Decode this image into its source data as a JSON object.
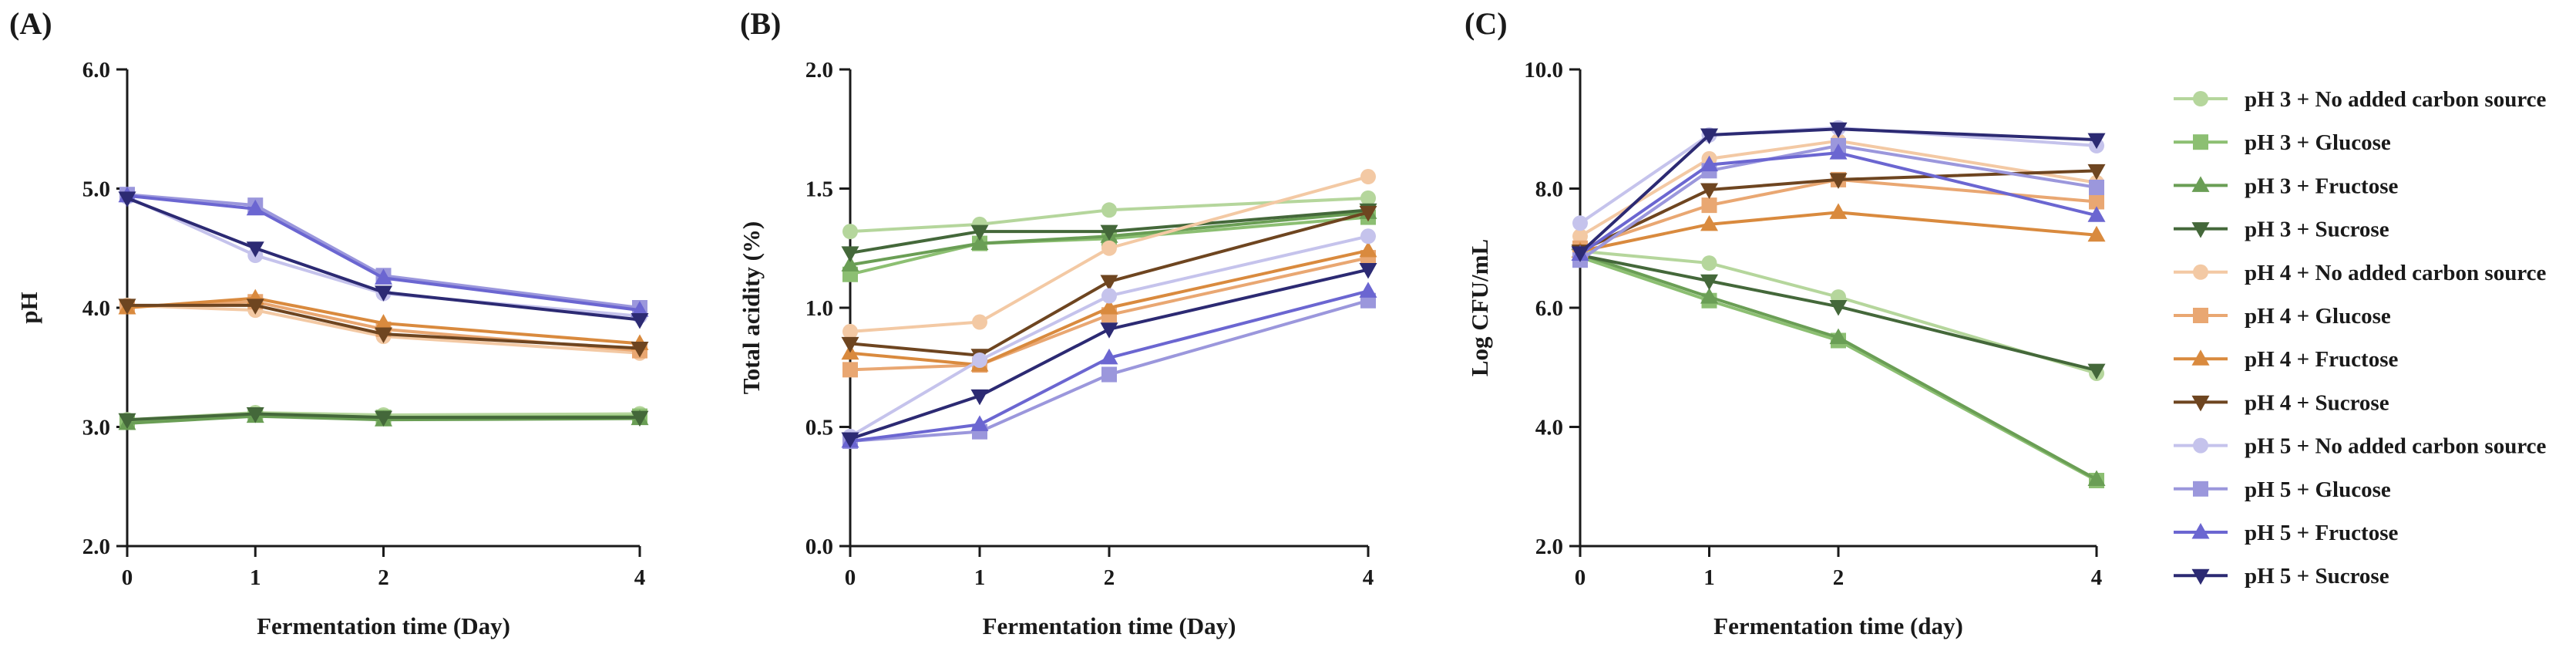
{
  "colors": {
    "axis": "#1a1a1a",
    "pH 3 + No added carbon source": "#b5d69c",
    "pH 3 + Glucose": "#8cbf72",
    "pH 3 + Fructose": "#6a9e55",
    "pH 3 + Sucrose": "#44683a",
    "pH 4 + No added carbon source": "#f3c9a4",
    "pH 4 + Glucose": "#e9a772",
    "pH 4 + Fructose": "#d98a3e",
    "pH 4 + Sucrose": "#6e4520",
    "pH 5 + No added carbon source": "#c5c3ec",
    "pH 5 + Glucose": "#9b97dc",
    "pH 5 + Fructose": "#6b66d1",
    "pH 5 + Sucrose": "#2c2a73"
  },
  "legend": {
    "position": "right",
    "entries": [
      {
        "name": "pH 3 + No added carbon source",
        "marker": "circle"
      },
      {
        "name": "pH 3 + Glucose",
        "marker": "square"
      },
      {
        "name": "pH 3 + Fructose",
        "marker": "triangle-up"
      },
      {
        "name": "pH 3 + Sucrose",
        "marker": "triangle-down"
      },
      {
        "name": "pH 4 + No added carbon source",
        "marker": "circle"
      },
      {
        "name": "pH 4 + Glucose",
        "marker": "square"
      },
      {
        "name": "pH 4 + Fructose",
        "marker": "triangle-up"
      },
      {
        "name": "pH 4 + Sucrose",
        "marker": "triangle-down"
      },
      {
        "name": "pH 5 + No added carbon source",
        "marker": "circle"
      },
      {
        "name": "pH 5 + Glucose",
        "marker": "square"
      },
      {
        "name": "pH 5 + Fructose",
        "marker": "triangle-up"
      },
      {
        "name": "pH 5 + Sucrose",
        "marker": "triangle-down"
      }
    ]
  },
  "chart_data": [
    {
      "panel": "(A)",
      "type": "line",
      "xlabel": "Fermentation time (Day)",
      "ylabel": "pH",
      "x": [
        0,
        1,
        2,
        4
      ],
      "xticks": [
        "0",
        "1",
        "2",
        "4"
      ],
      "ylim": [
        2.0,
        6.0
      ],
      "yticks": [
        "2.0",
        "3.0",
        "4.0",
        "5.0",
        "6.0"
      ],
      "series": [
        {
          "name": "pH 3 + No added carbon source",
          "values": [
            3.06,
            3.12,
            3.1,
            3.11
          ]
        },
        {
          "name": "pH 3 + Glucose",
          "values": [
            3.04,
            3.1,
            3.08,
            3.09
          ]
        },
        {
          "name": "pH 3 + Fructose",
          "values": [
            3.03,
            3.09,
            3.06,
            3.07
          ]
        },
        {
          "name": "pH 3 + Sucrose",
          "values": [
            3.06,
            3.11,
            3.08,
            3.08
          ]
        },
        {
          "name": "pH 4 + No added carbon source",
          "values": [
            4.02,
            3.98,
            3.76,
            3.62
          ]
        },
        {
          "name": "pH 4 + Glucose",
          "values": [
            4.01,
            4.05,
            3.82,
            3.64
          ]
        },
        {
          "name": "pH 4 + Fructose",
          "values": [
            4.0,
            4.08,
            3.87,
            3.7
          ]
        },
        {
          "name": "pH 4 + Sucrose",
          "values": [
            4.02,
            4.02,
            3.78,
            3.66
          ]
        },
        {
          "name": "pH 5 + No added carbon source",
          "values": [
            4.93,
            4.44,
            4.12,
            3.93
          ]
        },
        {
          "name": "pH 5 + Glucose",
          "values": [
            4.95,
            4.86,
            4.27,
            4.0
          ]
        },
        {
          "name": "pH 5 + Fructose",
          "values": [
            4.94,
            4.83,
            4.25,
            3.98
          ]
        },
        {
          "name": "pH 5 + Sucrose",
          "values": [
            4.92,
            4.5,
            4.13,
            3.9
          ]
        }
      ]
    },
    {
      "panel": "(B)",
      "type": "line",
      "xlabel": "Fermentation time (Day)",
      "ylabel": "Total acidity (%)",
      "x": [
        0,
        1,
        2,
        4
      ],
      "xticks": [
        "0",
        "1",
        "2",
        "4"
      ],
      "ylim": [
        0.0,
        2.0
      ],
      "yticks": [
        "0.0",
        "0.5",
        "1.0",
        "1.5",
        "2.0"
      ],
      "series": [
        {
          "name": "pH 3 + No added carbon source",
          "values": [
            1.32,
            1.35,
            1.41,
            1.46
          ]
        },
        {
          "name": "pH 3 + Glucose",
          "values": [
            1.14,
            1.27,
            1.29,
            1.38
          ]
        },
        {
          "name": "pH 3 + Fructose",
          "values": [
            1.18,
            1.27,
            1.3,
            1.4
          ]
        },
        {
          "name": "pH 3 + Sucrose",
          "values": [
            1.23,
            1.32,
            1.32,
            1.41
          ]
        },
        {
          "name": "pH 4 + No added carbon source",
          "values": [
            0.9,
            0.94,
            1.25,
            1.55
          ]
        },
        {
          "name": "pH 4 + Glucose",
          "values": [
            0.74,
            0.76,
            0.97,
            1.21
          ]
        },
        {
          "name": "pH 4 + Fructose",
          "values": [
            0.81,
            0.76,
            1.0,
            1.24
          ]
        },
        {
          "name": "pH 4 + Sucrose",
          "values": [
            0.85,
            0.8,
            1.11,
            1.4
          ]
        },
        {
          "name": "pH 5 + No added carbon source",
          "values": [
            0.46,
            0.78,
            1.05,
            1.3
          ]
        },
        {
          "name": "pH 5 + Glucose",
          "values": [
            0.44,
            0.48,
            0.72,
            1.03
          ]
        },
        {
          "name": "pH 5 + Fructose",
          "values": [
            0.44,
            0.51,
            0.79,
            1.07
          ]
        },
        {
          "name": "pH 5 + Sucrose",
          "values": [
            0.45,
            0.63,
            0.91,
            1.16
          ]
        }
      ]
    },
    {
      "panel": "(C)",
      "type": "line",
      "xlabel": "Fermentation time (day)",
      "ylabel": "Log CFU/mL",
      "x": [
        0,
        1,
        2,
        4
      ],
      "xticks": [
        "0",
        "1",
        "2",
        "4"
      ],
      "ylim": [
        2.0,
        10.0
      ],
      "yticks": [
        "2.0",
        "4.0",
        "6.0",
        "8.0",
        "10.0"
      ],
      "series": [
        {
          "name": "pH 3 + No added carbon source",
          "values": [
            6.95,
            6.75,
            6.18,
            4.9
          ]
        },
        {
          "name": "pH 3 + Glucose",
          "values": [
            6.85,
            6.12,
            5.45,
            3.1
          ]
        },
        {
          "name": "pH 3 + Fructose",
          "values": [
            6.9,
            6.18,
            5.5,
            3.12
          ]
        },
        {
          "name": "pH 3 + Sucrose",
          "values": [
            6.88,
            6.45,
            6.02,
            4.95
          ]
        },
        {
          "name": "pH 4 + No added carbon source",
          "values": [
            7.2,
            8.5,
            8.8,
            8.1
          ]
        },
        {
          "name": "pH 4 + Glucose",
          "values": [
            7.0,
            7.72,
            8.15,
            7.78
          ]
        },
        {
          "name": "pH 4 + Fructose",
          "values": [
            6.95,
            7.4,
            7.6,
            7.22
          ]
        },
        {
          "name": "pH 4 + Sucrose",
          "values": [
            6.95,
            7.98,
            8.15,
            8.3
          ]
        },
        {
          "name": "pH 5 + No added carbon source",
          "values": [
            7.42,
            8.9,
            9.02,
            8.72
          ]
        },
        {
          "name": "pH 5 + Glucose",
          "values": [
            6.8,
            8.3,
            8.72,
            8.02
          ]
        },
        {
          "name": "pH 5 + Fructose",
          "values": [
            6.9,
            8.4,
            8.6,
            7.55
          ]
        },
        {
          "name": "pH 5 + Sucrose",
          "values": [
            6.92,
            8.9,
            9.0,
            8.82
          ]
        }
      ]
    }
  ]
}
